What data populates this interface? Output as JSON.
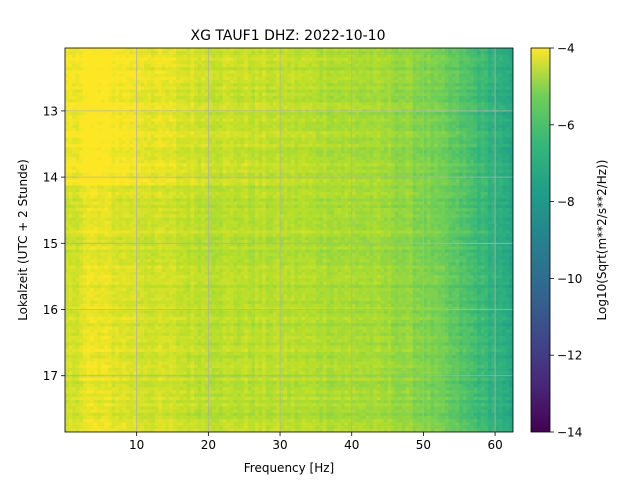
{
  "chart_data": {
    "type": "heatmap",
    "title": "XG TAUF1  DHZ: 2022-10-10",
    "xlabel": "Frequency [Hz]",
    "ylabel": "Lokalzeit (UTC + 2 Stunde)",
    "xlim": [
      0,
      62.5
    ],
    "ylim": [
      17.85,
      12.05
    ],
    "y_inverted": true,
    "xticks": [
      10,
      20,
      30,
      40,
      50,
      60
    ],
    "yticks": [
      13,
      14,
      15,
      16,
      17
    ],
    "grid": true,
    "colormap": "viridis",
    "colorbar": {
      "label": "Log10(Sqrt(m**2/s**2/Hz))",
      "range": [
        -14,
        -4
      ],
      "ticks": [
        -4,
        -6,
        -8,
        -10,
        -12,
        -14
      ]
    },
    "value_profile_by_frequency": {
      "frequency_hz": [
        0.5,
        3,
        10,
        20,
        30,
        40,
        45,
        50,
        55,
        60,
        62.5
      ],
      "log10_amplitude": [
        -4.8,
        -4.3,
        -4.6,
        -5.0,
        -5.1,
        -5.3,
        -5.5,
        -5.9,
        -6.7,
        -7.6,
        -8.2
      ]
    },
    "time_rows": {
      "count": 120,
      "brighter_band_hours": [
        12.05,
        14.1
      ],
      "brighter_band_offset": 0.5
    }
  }
}
